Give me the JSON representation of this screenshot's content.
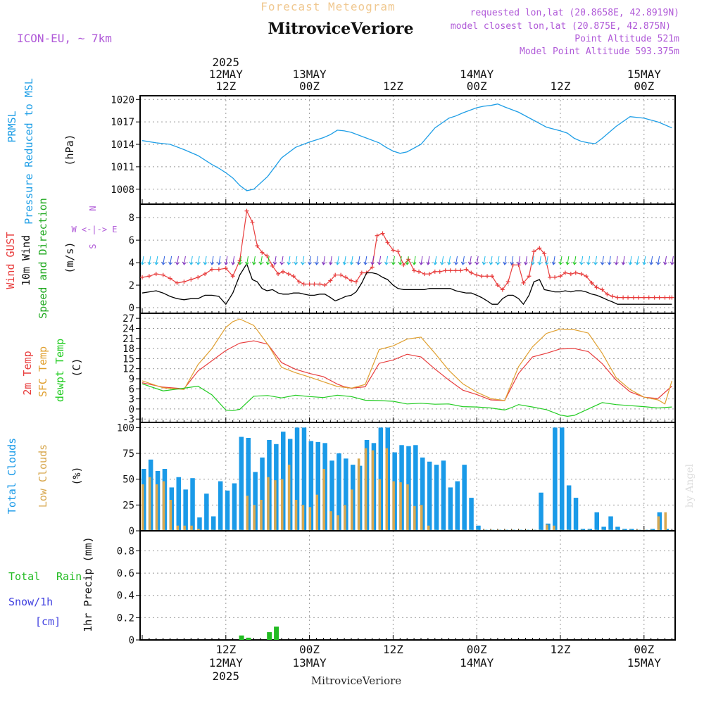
{
  "header": {
    "supertitle": "Forecast Meteogram",
    "location": "MitroviceVeriore",
    "model": "ICON-EU, ~ 7km",
    "requested": "requested lon,lat (20.8658E, 42.8919N)",
    "closest": "model closest lon,lat (20.875E, 42.875N)",
    "point_alt": "Point Altitude 521m",
    "model_alt": "Model Point Altitude 593.375m",
    "footer_location": "MitroviceVeriore",
    "watermark": "by Angel"
  },
  "time_axis": {
    "top_labels": [
      {
        "h": 12,
        "lines": [
          "2025",
          "12MAY",
          "12Z"
        ]
      },
      {
        "h": 24,
        "lines": [
          "13MAY",
          "00Z"
        ]
      },
      {
        "h": 36,
        "lines": [
          "12Z"
        ]
      },
      {
        "h": 48,
        "lines": [
          "14MAY",
          "00Z"
        ]
      },
      {
        "h": 60,
        "lines": [
          "12Z"
        ]
      },
      {
        "h": 72,
        "lines": [
          "15MAY",
          "00Z"
        ]
      }
    ],
    "bottom_labels": [
      {
        "h": 12,
        "lines": [
          "12Z",
          "12MAY",
          "2025"
        ]
      },
      {
        "h": 24,
        "lines": [
          "00Z",
          "13MAY"
        ]
      },
      {
        "h": 36,
        "lines": [
          "12Z"
        ]
      },
      {
        "h": 48,
        "lines": [
          "00Z",
          "14MAY"
        ]
      },
      {
        "h": 60,
        "lines": [
          "12Z"
        ]
      },
      {
        "h": 72,
        "lines": [
          "00Z",
          "15MAY"
        ]
      }
    ]
  },
  "colors": {
    "pressure": "#1e9ee6",
    "gust": "#e83c3c",
    "wind": "#000000",
    "direction": "#22aa22",
    "sfc": "#e0a030",
    "dewpt": "#22cc22",
    "total_clouds": "#1a9ae8",
    "low_clouds": "#d8a850",
    "rain": "#22bb22",
    "snow": "#4040e0",
    "header_purple": "#b05ad8",
    "supertitle": "#f0c890"
  },
  "chart_data": [
    {
      "type": "line",
      "labels": [
        "PRMSL",
        "Pressure Reduced to MSL",
        "(hPa)"
      ],
      "ylim": [
        1006,
        1020.5
      ],
      "yticks": [
        "1008",
        "1011",
        "1014",
        "1017",
        "1020"
      ],
      "x": [
        0,
        2,
        4,
        6,
        8,
        10,
        11,
        12,
        13,
        14,
        15,
        16,
        18,
        20,
        22,
        24,
        26,
        27,
        28,
        29,
        30,
        32,
        34,
        35,
        36,
        37,
        38,
        40,
        42,
        44,
        45,
        46,
        48,
        49,
        50,
        51,
        52,
        54,
        56,
        57,
        58,
        60,
        61,
        62,
        63,
        64,
        65,
        66,
        68,
        70,
        72,
        74,
        75,
        76
      ],
      "values": [
        1014.5,
        1014.2,
        1014,
        1013.3,
        1012.5,
        1011.3,
        1010.8,
        1010.2,
        1009.5,
        1008.5,
        1007.8,
        1008,
        1009.7,
        1012.2,
        1013.6,
        1014.3,
        1014.9,
        1015.3,
        1015.9,
        1015.8,
        1015.6,
        1014.9,
        1014.2,
        1013.6,
        1013.1,
        1012.8,
        1013,
        1014,
        1016.2,
        1017.5,
        1017.8,
        1018.2,
        1018.9,
        1019.1,
        1019.2,
        1019.4,
        1019,
        1018.3,
        1017.3,
        1016.8,
        1016.3,
        1015.8,
        1015.5,
        1014.8,
        1014.4,
        1014.2,
        1014.1,
        1014.8,
        1016.4,
        1017.7,
        1017.5,
        1017,
        1016.6,
        1016.2
      ]
    },
    {
      "type": "line",
      "labels": [
        "Wind GUST",
        "10m Wind",
        "Speed and Direction",
        "(m/s)"
      ],
      "compass": [
        "N",
        "W <-|-> E",
        "S"
      ],
      "ylim": [
        -0.5,
        9.2
      ],
      "yticks": [
        "0",
        "2",
        "4",
        "6",
        "8"
      ],
      "series": [
        {
          "name": "Wind GUST",
          "x": [
            0,
            1,
            2,
            3,
            4,
            5,
            6,
            7,
            8,
            9,
            10,
            11,
            12,
            13,
            14,
            15,
            15.8,
            16.5,
            17.2,
            17.9,
            18.7,
            19.5,
            20.2,
            21,
            21.7,
            22.5,
            23.2,
            24,
            24.7,
            25.5,
            26.2,
            27,
            27.7,
            28.5,
            29.2,
            30,
            30.7,
            31.5,
            32.2,
            33,
            33.7,
            34.5,
            35.2,
            36,
            36.7,
            37.5,
            38.2,
            39,
            39.7,
            40.5,
            41.2,
            42,
            42.7,
            43.5,
            44.2,
            45,
            45.7,
            46.5,
            47.2,
            48,
            48.7,
            49.5,
            50.2,
            51,
            51.7,
            52.5,
            53.2,
            54,
            54.7,
            55.5,
            56.2,
            57,
            57.7,
            58.5,
            59.2,
            60,
            60.7,
            61.5,
            62.2,
            63,
            63.7,
            64.5,
            65.2,
            66,
            66.7,
            67.5,
            68.2,
            69,
            69.7,
            70.5,
            71.2,
            72,
            72.7,
            73.5,
            74.2,
            75,
            75.7,
            76
          ],
          "values": [
            2.7,
            2.8,
            3,
            2.9,
            2.6,
            2.2,
            2.3,
            2.5,
            2.7,
            3,
            3.4,
            3.4,
            3.5,
            2.8,
            4.2,
            8.6,
            7.6,
            5.5,
            4.9,
            4.6,
            3.7,
            3,
            3.2,
            3,
            2.8,
            2.3,
            2.1,
            2.1,
            2.1,
            2.1,
            2,
            2.4,
            2.9,
            2.9,
            2.7,
            2.4,
            2.3,
            3.1,
            3.1,
            3.6,
            6.4,
            6.6,
            5.8,
            5.1,
            5,
            3.8,
            4.3,
            3.3,
            3.2,
            3,
            3,
            3.2,
            3.2,
            3.3,
            3.3,
            3.3,
            3.3,
            3.4,
            3.1,
            2.9,
            2.8,
            2.8,
            2.8,
            2,
            1.6,
            2.3,
            3.8,
            3.8,
            2.2,
            2.8,
            5,
            5.3,
            4.8,
            2.7,
            2.7,
            2.8,
            3.1,
            3,
            3.1,
            3,
            2.8,
            2.2,
            1.8,
            1.6,
            1.2,
            1,
            0.9,
            0.9,
            0.9,
            0.9,
            0.9,
            0.9,
            0.9,
            0.9,
            0.9,
            0.9,
            0.9,
            0.9
          ]
        },
        {
          "name": "10m Wind",
          "x": [
            0,
            1,
            2,
            3,
            4,
            5,
            6,
            7,
            8,
            9,
            10,
            11,
            12,
            13,
            14,
            15,
            15.8,
            16.5,
            17.2,
            17.9,
            18.7,
            19.5,
            20.2,
            21,
            21.7,
            22.5,
            23.2,
            24,
            24.7,
            25.5,
            26.2,
            27,
            27.7,
            28.5,
            29.2,
            30,
            30.7,
            31.5,
            32.2,
            33,
            33.7,
            34.5,
            35.2,
            36,
            36.7,
            37.5,
            38.2,
            39,
            39.7,
            40.5,
            41.2,
            42,
            42.7,
            43.5,
            44.2,
            45,
            45.7,
            46.5,
            47.2,
            48,
            48.7,
            49.5,
            50.2,
            51,
            51.7,
            52.5,
            53.2,
            54,
            54.7,
            55.5,
            56.2,
            57,
            57.7,
            58.5,
            59.2,
            60,
            60.7,
            61.5,
            62.2,
            63,
            63.7,
            64.5,
            65.2,
            66,
            66.7,
            67.5,
            68.2,
            69,
            69.7,
            70.5,
            71.2,
            72,
            72.7,
            73.5,
            74.2,
            75,
            75.7,
            76
          ],
          "values": [
            1.3,
            1.4,
            1.5,
            1.3,
            1,
            0.8,
            0.7,
            0.8,
            0.8,
            1.1,
            1.1,
            1,
            0.3,
            1.3,
            2.9,
            3.9,
            2.5,
            2.3,
            1.7,
            1.5,
            1.6,
            1.3,
            1.2,
            1.2,
            1.3,
            1.3,
            1.2,
            1.1,
            1.1,
            1.2,
            1.2,
            0.9,
            0.6,
            0.8,
            1,
            1.1,
            1.4,
            2.2,
            3.1,
            3.1,
            3,
            2.7,
            2.5,
            2,
            1.7,
            1.6,
            1.6,
            1.6,
            1.6,
            1.6,
            1.7,
            1.7,
            1.7,
            1.7,
            1.7,
            1.5,
            1.4,
            1.3,
            1.3,
            1.1,
            0.9,
            0.6,
            0.3,
            0.3,
            0.8,
            1.1,
            1.1,
            0.8,
            0.3,
            1.1,
            2.3,
            2.5,
            1.6,
            1.5,
            1.4,
            1.4,
            1.5,
            1.4,
            1.5,
            1.5,
            1.4,
            1.2,
            1.1,
            0.9,
            0.7,
            0.5,
            0.3,
            0.3,
            0.3,
            0.3,
            0.3,
            0.3,
            0.3,
            0.3,
            0.3,
            0.3,
            0.3,
            0.3
          ]
        }
      ]
    },
    {
      "type": "line",
      "labels": [
        "2m Temp",
        "SFC Temp",
        "dewpt Temp",
        "(C)"
      ],
      "ylim": [
        -4,
        28.5
      ],
      "yticks": [
        "-3",
        "0",
        "3",
        "6",
        "9",
        "12",
        "15",
        "18",
        "21",
        "24",
        "27"
      ],
      "series": [
        {
          "name": "2m Temp",
          "x": [
            0,
            3,
            6,
            8,
            12,
            14,
            16,
            18,
            20,
            22,
            24,
            26,
            28,
            29,
            30,
            32,
            34,
            36,
            38,
            40,
            42,
            44,
            46,
            48,
            50,
            52,
            54,
            56,
            58,
            60,
            62,
            64,
            66,
            68,
            70,
            72,
            74,
            76
          ],
          "values": [
            7.8,
            6.5,
            6,
            11.3,
            17.4,
            19.6,
            20.3,
            19.3,
            13.8,
            11.8,
            10.6,
            9.6,
            7.4,
            6.6,
            6.2,
            6.6,
            13.6,
            14.6,
            16.3,
            15.5,
            11.9,
            8.6,
            5.6,
            4.3,
            2.7,
            2.5,
            10.6,
            15.5,
            16.6,
            17.9,
            18,
            17.1,
            13.5,
            8.6,
            5.1,
            3.5,
            3.1,
            6.8
          ]
        },
        {
          "name": "SFC Temp",
          "x": [
            0,
            3,
            6,
            8,
            10,
            12,
            13,
            14,
            16,
            18,
            20,
            22,
            24,
            26,
            28,
            30,
            32,
            34,
            36,
            38,
            40,
            42,
            44,
            46,
            48,
            50,
            52,
            54,
            56,
            58,
            60,
            62,
            64,
            66,
            68,
            70,
            72,
            74,
            75,
            76
          ],
          "values": [
            8.4,
            6.3,
            5.8,
            13.2,
            18,
            24.3,
            26,
            26.8,
            24.9,
            19.3,
            12.4,
            10.8,
            9.5,
            8.1,
            6.7,
            6.2,
            7.3,
            17.7,
            18.8,
            20.8,
            21.4,
            16.6,
            11.5,
            7.5,
            5,
            3.1,
            2.5,
            12.6,
            18.5,
            22.5,
            23.8,
            23.6,
            22.6,
            16.6,
            9.3,
            5.8,
            3.5,
            2.7,
            1.5,
            8.4
          ]
        },
        {
          "name": "dewpt Temp",
          "x": [
            0,
            3,
            6,
            8,
            10,
            12,
            13,
            14,
            16,
            18,
            20,
            22,
            24,
            26,
            28,
            30,
            32,
            34,
            36,
            38,
            40,
            42,
            44,
            46,
            48,
            50,
            52,
            53,
            54,
            56,
            58,
            60,
            61,
            62,
            64,
            66,
            68,
            70,
            72,
            74,
            76
          ],
          "values": [
            7.5,
            5.4,
            6.2,
            6.8,
            4.2,
            -0.3,
            -0.5,
            -0.1,
            3.8,
            4,
            3.3,
            4.1,
            3.7,
            3.4,
            4.1,
            3.7,
            2.6,
            2.5,
            2.3,
            1.5,
            1.7,
            1.4,
            1.5,
            0.7,
            0.6,
            0.3,
            -0.3,
            0.4,
            1.3,
            0.6,
            -0.2,
            -1.8,
            -2.2,
            -1.9,
            0,
            1.9,
            1.3,
            1,
            0.7,
            0.3,
            0.6
          ]
        }
      ]
    },
    {
      "type": "bar",
      "labels": [
        "Total Clouds",
        "Low Clouds",
        "(%)"
      ],
      "ylim": [
        0,
        105
      ],
      "yticks": [
        "0",
        "25",
        "50",
        "75",
        "100"
      ],
      "x": [
        0,
        1,
        2,
        3,
        4,
        5,
        6,
        7,
        8,
        9,
        10,
        11,
        12,
        13,
        14,
        15,
        16,
        17,
        18,
        19,
        20,
        21,
        22,
        23,
        24,
        25,
        26,
        27,
        28,
        29,
        30,
        31,
        32,
        33,
        34,
        35,
        36,
        37,
        38,
        39,
        40,
        41,
        42,
        43,
        44,
        45,
        46,
        47,
        48,
        49,
        50,
        51,
        52,
        53,
        54,
        55,
        56,
        57,
        58,
        59,
        60,
        61,
        62,
        63,
        64,
        65,
        66,
        67,
        68,
        69,
        70,
        71,
        72,
        73,
        74,
        75
      ],
      "series": [
        {
          "name": "Total Clouds",
          "values": [
            60,
            69,
            58,
            60,
            42,
            52,
            40,
            51,
            13,
            36,
            14,
            48,
            39,
            46,
            91,
            90,
            57,
            71,
            88,
            84,
            96,
            89,
            100,
            100,
            87,
            86,
            85,
            68,
            75,
            70,
            64,
            63,
            88,
            85,
            100,
            100,
            76,
            83,
            82,
            83,
            71,
            67,
            64,
            68,
            42,
            48,
            64,
            32,
            5,
            1,
            1,
            1,
            1,
            1,
            1,
            1,
            1,
            37,
            7,
            100,
            100,
            44,
            32,
            2,
            2,
            18,
            4,
            14,
            4,
            2,
            2,
            1,
            1,
            2,
            18,
            2
          ]
        },
        {
          "name": "Low Clouds",
          "values": [
            45,
            52,
            45,
            48,
            30,
            5,
            5,
            5,
            2,
            1,
            1,
            1,
            1,
            1,
            1,
            34,
            25,
            30,
            52,
            49,
            50,
            64,
            30,
            25,
            23,
            35,
            60,
            19,
            15,
            25,
            40,
            70,
            80,
            78,
            50,
            80,
            48,
            47,
            45,
            24,
            25,
            5,
            1,
            1,
            1,
            1,
            1,
            1,
            1,
            1,
            1,
            1,
            1,
            1,
            1,
            1,
            1,
            1,
            6,
            5,
            1,
            1,
            1,
            1,
            1,
            1,
            1,
            1,
            1,
            1,
            1,
            1,
            1,
            1,
            14,
            18
          ]
        }
      ]
    },
    {
      "type": "bar",
      "labels": [
        "Total",
        "Rain",
        "Snow/1h",
        "[cm]",
        "1hr Precip (mm)"
      ],
      "ylim": [
        0,
        0.98
      ],
      "yticks": [
        "0",
        "0.2",
        "0.4",
        "0.6",
        "0.8"
      ],
      "x": [
        14,
        15,
        18,
        19
      ],
      "values": [
        0.04,
        0.02,
        0.07,
        0.12
      ]
    }
  ]
}
